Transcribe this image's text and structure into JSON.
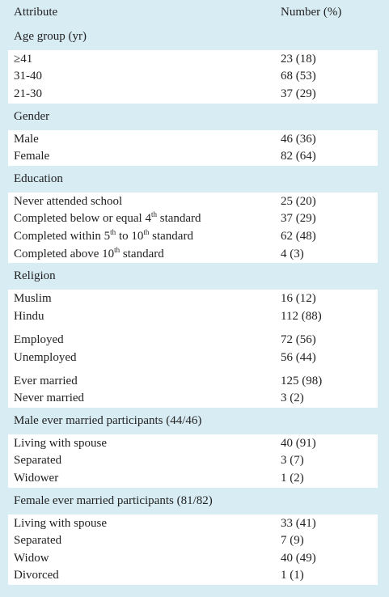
{
  "header": [
    "Attribute",
    "Number (%)"
  ],
  "sections": [
    {
      "title": "Age group (yr)",
      "groups": [
        [
          {
            "label": "≥41",
            "number": "23 (18)"
          },
          {
            "label": "31-40",
            "number": "68 (53)"
          },
          {
            "label": "21-30",
            "number": "37 (29)"
          }
        ]
      ]
    },
    {
      "title": "Gender",
      "groups": [
        [
          {
            "label": "Male",
            "number": "46 (36)"
          },
          {
            "label": "Female",
            "number": "82 (64)"
          }
        ]
      ]
    },
    {
      "title": "Education",
      "groups": [
        [
          {
            "label": "Never attended school",
            "number": "25 (20)"
          },
          {
            "label": [
              "Completed below or equal 4",
              "th",
              " standard"
            ],
            "number": "37 (29)"
          },
          {
            "label": [
              "Completed within 5",
              "th",
              " to 10",
              "th",
              " standard"
            ],
            "number": "62 (48)"
          },
          {
            "label": [
              "Completed above 10",
              "th",
              " standard"
            ],
            "number": "4 (3)"
          }
        ]
      ]
    },
    {
      "title": "Religion",
      "groups": [
        [
          {
            "label": "Muslim",
            "number": "16 (12)"
          },
          {
            "label": "Hindu",
            "number": "112 (88)"
          }
        ],
        [
          {
            "label": "Employed",
            "number": "72 (56)"
          },
          {
            "label": "Unemployed",
            "number": "56 (44)"
          }
        ],
        [
          {
            "label": "Ever married",
            "number": "125 (98)"
          },
          {
            "label": "Never married",
            "number": "3 (2)"
          }
        ]
      ]
    },
    {
      "title": "Male ever married participants (44/46)",
      "groups": [
        [
          {
            "label": "Living with spouse",
            "number": "40 (91)"
          },
          {
            "label": "Separated",
            "number": "3 (7)"
          },
          {
            "label": "Widower",
            "number": "1 (2)"
          }
        ]
      ]
    },
    {
      "title": "Female ever married participants (81/82)",
      "groups": [
        [
          {
            "label": "Living with spouse",
            "number": "33 (41)"
          },
          {
            "label": "Separated",
            "number": "7 (9)"
          },
          {
            "label": "Widow",
            "number": "40 (49)"
          },
          {
            "label": "Divorced",
            "number": "1 (1)"
          }
        ]
      ]
    }
  ]
}
